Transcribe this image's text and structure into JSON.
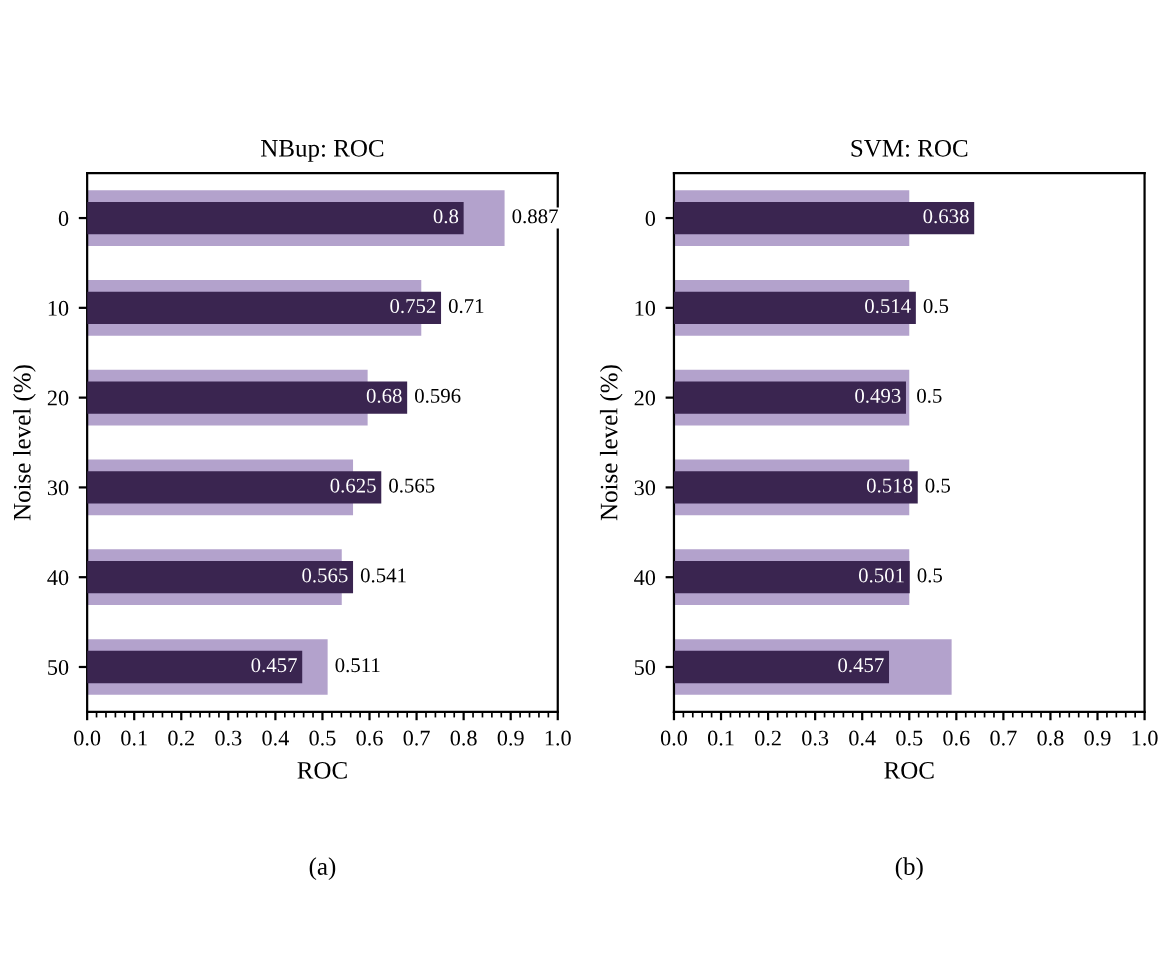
{
  "chart_data": [
    {
      "type": "bar",
      "orientation": "horizontal",
      "title": "NBup: ROC",
      "xlabel": "ROC",
      "ylabel": "Noise level (%)",
      "categories": [
        "0",
        "10",
        "20",
        "30",
        "40",
        "50"
      ],
      "series": [
        {
          "color": "#b3a2cc",
          "values": [
            0.887,
            0.71,
            0.596,
            0.565,
            0.541,
            0.511
          ]
        },
        {
          "color": "#3a2550",
          "values": [
            0.8,
            0.752,
            0.68,
            0.625,
            0.565,
            0.457
          ]
        }
      ],
      "data_labels": true,
      "xlim": [
        0,
        1
      ],
      "xticks": [
        {
          "value": 0,
          "label": "0.0"
        },
        {
          "value": 0.1,
          "label": "0.1"
        },
        {
          "value": 0.2,
          "label": "0.2"
        },
        {
          "value": 0.3,
          "label": "0.3"
        },
        {
          "value": 0.4,
          "label": "0.4"
        },
        {
          "value": 0.5,
          "label": "0.5"
        },
        {
          "value": 0.6,
          "label": "0.6"
        },
        {
          "value": 0.7,
          "label": "0.7"
        },
        {
          "value": 0.8,
          "label": "0.8"
        },
        {
          "value": 0.9,
          "label": "0.9"
        },
        {
          "value": 1,
          "label": "1.0"
        }
      ],
      "grid": false,
      "annotations": [
        "(a)"
      ]
    },
    {
      "type": "bar",
      "orientation": "horizontal",
      "title": "SVM: ROC",
      "xlabel": "ROC",
      "ylabel": "Noise level (%)",
      "categories": [
        "0",
        "10",
        "20",
        "30",
        "40",
        "50"
      ],
      "series": [
        {
          "color": "#b3a2cc",
          "values": [
            0.5,
            0.5,
            0.5,
            0.5,
            0.5,
            0.59
          ],
          "value_labels": [
            null,
            "0.5",
            "0.5",
            "0.5",
            "0.5",
            null
          ]
        },
        {
          "color": "#3a2550",
          "values": [
            0.638,
            0.514,
            0.493,
            0.518,
            0.501,
            0.457
          ],
          "value_labels": [
            "0.638",
            "0.514",
            "0.493",
            "0.518",
            "0.501",
            "0.457"
          ]
        }
      ],
      "xlim": [
        0,
        1
      ],
      "xticks": [
        {
          "value": 0,
          "label": "0.0"
        },
        {
          "value": 0.1,
          "label": "0.1"
        },
        {
          "value": 0.2,
          "label": "0.2"
        },
        {
          "value": 0.3,
          "label": "0.3"
        },
        {
          "value": 0.4,
          "label": "0.4"
        },
        {
          "value": 0.5,
          "label": "0.5"
        },
        {
          "value": 0.6,
          "label": "0.6"
        },
        {
          "value": 0.7,
          "label": "0.7"
        },
        {
          "value": 0.8,
          "label": "0.8"
        },
        {
          "value": 0.9,
          "label": "0.9"
        },
        {
          "value": 1,
          "label": "1.0"
        }
      ],
      "grid": false,
      "annotations": [
        "(b)"
      ]
    }
  ]
}
